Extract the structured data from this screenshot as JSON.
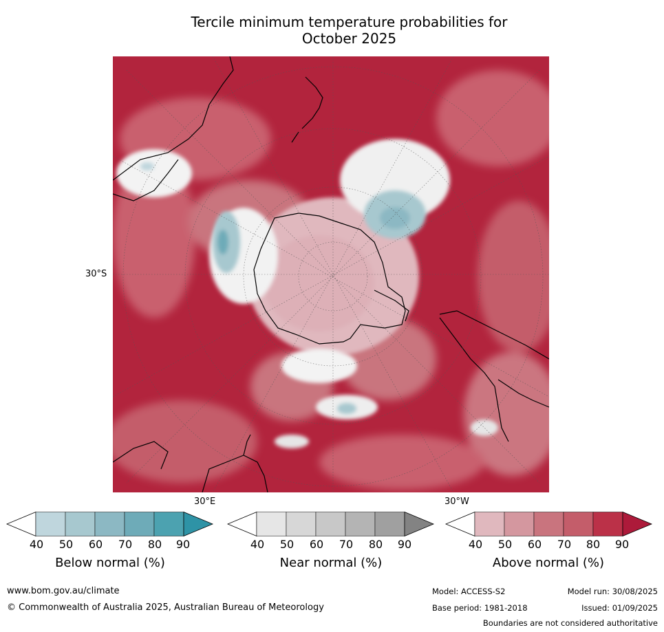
{
  "title_line1": "Tercile minimum temperature probabilities for",
  "title_line2": "October 2025",
  "map_labels": {
    "lat_30s": "30°S",
    "lon_30e": "30°E",
    "lon_30w": "30°W"
  },
  "colorbars": [
    {
      "id": "below",
      "label": "Below normal (%)",
      "ticks": [
        "40",
        "50",
        "60",
        "70",
        "80",
        "90"
      ],
      "colors": [
        "#bfd6dd",
        "#a7c8cf",
        "#8cb8c3",
        "#6eabb8",
        "#4ca2b0",
        "#2e93a6"
      ]
    },
    {
      "id": "near",
      "label": "Near normal (%)",
      "ticks": [
        "40",
        "50",
        "60",
        "70",
        "80",
        "90"
      ],
      "colors": [
        "#e6e6e6",
        "#d7d7d7",
        "#c8c8c8",
        "#b4b4b4",
        "#a0a0a0",
        "#838383"
      ]
    },
    {
      "id": "above",
      "label": "Above normal (%)",
      "ticks": [
        "40",
        "50",
        "60",
        "70",
        "80",
        "90"
      ],
      "colors": [
        "#e0b8be",
        "#d4979f",
        "#c9747e",
        "#c45d6a",
        "#bb3148",
        "#ad1a3a"
      ]
    }
  ],
  "footer": {
    "url": "www.bom.gov.au/climate",
    "copyright": "© Commonwealth of Australia 2025, Australian Bureau of Meteorology",
    "model": "Model: ACCESS-S2",
    "model_run": "Model run: 30/08/2025",
    "base_period": "Base period: 1981-2018",
    "issued": "Issued: 01/09/2025",
    "boundaries": "Boundaries are not considered authoritative"
  }
}
